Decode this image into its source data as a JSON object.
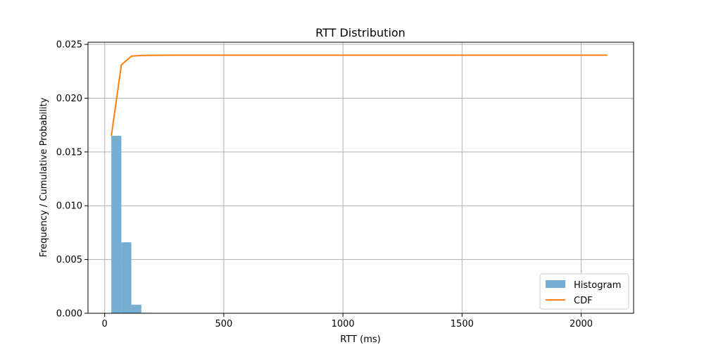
{
  "chart_data": {
    "type": "bar",
    "title": "RTT Distribution",
    "xlabel": "RTT (ms)",
    "ylabel": "Frequency / Cumulative Probability",
    "xlim": [
      -70,
      2220
    ],
    "ylim": [
      0,
      0.0252
    ],
    "x_ticks": [
      0,
      500,
      1000,
      1500,
      2000
    ],
    "x_tick_labels": [
      "0",
      "500",
      "1000",
      "1500",
      "2000"
    ],
    "y_ticks": [
      0,
      0.005,
      0.01,
      0.015,
      0.02,
      0.025
    ],
    "y_tick_labels": [
      "0.000",
      "0.005",
      "0.010",
      "0.015",
      "0.020",
      "0.025"
    ],
    "grid": true,
    "legend_position": "bottom-right",
    "histogram": {
      "name": "Histogram",
      "color": "#76aed3",
      "bins": [
        {
          "x0": 28,
          "x1": 70,
          "value": 0.0165
        },
        {
          "x0": 70,
          "x1": 112,
          "value": 0.0066
        },
        {
          "x0": 112,
          "x1": 154,
          "value": 0.0008
        },
        {
          "x0": 154,
          "x1": 196,
          "value": 5e-05
        }
      ]
    },
    "cdf": {
      "name": "CDF",
      "color": "#ff7f0e",
      "x": [
        28,
        70,
        112,
        154,
        300,
        600,
        1000,
        1500,
        2110
      ],
      "y": [
        0.0165,
        0.0231,
        0.0239,
        0.02397,
        0.024,
        0.024,
        0.024,
        0.024,
        0.024
      ]
    }
  }
}
